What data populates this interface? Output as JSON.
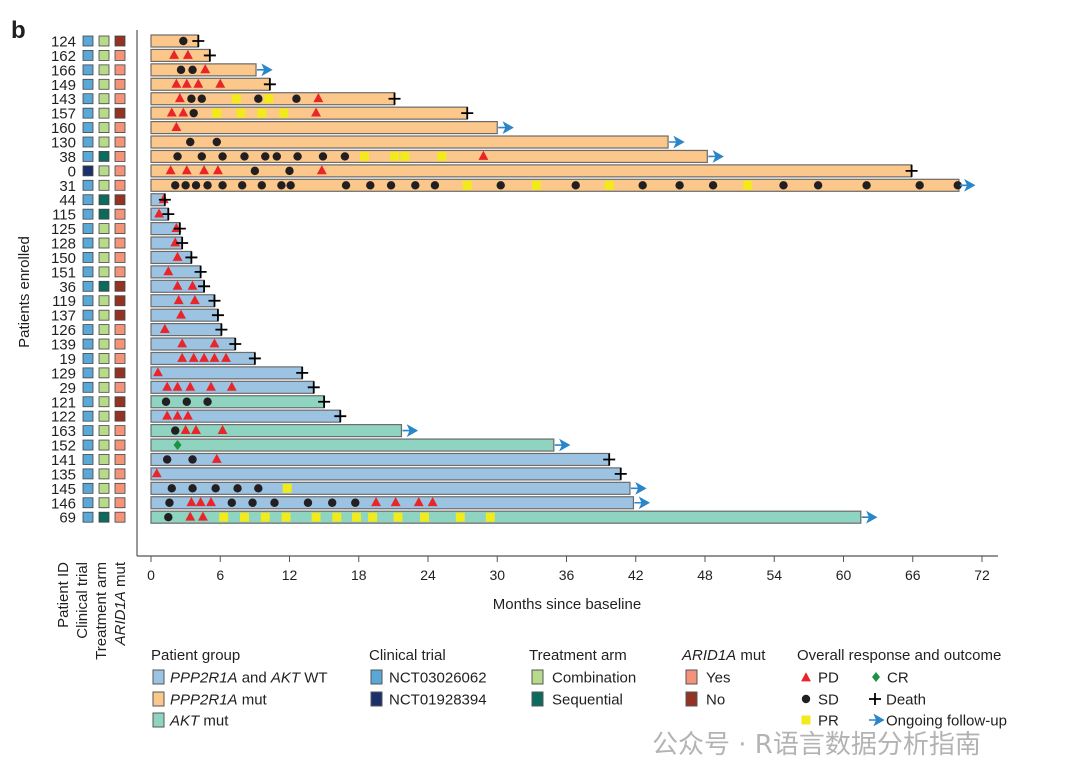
{
  "chart_data": {
    "type": "swimmer",
    "panel_label": "b",
    "xlabel": "Months since baseline",
    "ylabel": "Patients enrolled",
    "xlim": [
      0,
      72
    ],
    "xticks": [
      0,
      6,
      12,
      18,
      24,
      30,
      36,
      42,
      48,
      54,
      60,
      66,
      72
    ],
    "column_labels": [
      "Patient ID",
      "Clinical trial",
      "Treatment arm",
      "ARID1A mut"
    ],
    "colors": {
      "group": {
        "wt": "#9dc3e2",
        "ppp2r1a": "#fbc78b",
        "akt": "#8fd3c1"
      },
      "trial": {
        "NCT03026062": "#5aa7d8",
        "NCT01928394": "#1b2f6b"
      },
      "arm": {
        "combination": "#b7db8b",
        "sequential": "#0d6b5e"
      },
      "arid": {
        "yes": "#f3937a",
        "no": "#933324"
      },
      "PD": "#e8262a",
      "SD": "#231f20",
      "PR": "#f2ea1a",
      "CR": "#1d9145",
      "ongoing": "#2a86c8",
      "death": "#000000"
    },
    "rows": [
      {
        "id": "124",
        "group": "ppp2r1a",
        "trial": "NCT03026062",
        "arm": "combination",
        "arid": "no",
        "end": 4.1,
        "outcome": "death",
        "SD": [
          2.8
        ]
      },
      {
        "id": "162",
        "group": "ppp2r1a",
        "trial": "NCT03026062",
        "arm": "combination",
        "arid": "yes",
        "end": 5.1,
        "outcome": "death",
        "PD": [
          2.0,
          3.2
        ]
      },
      {
        "id": "166",
        "group": "ppp2r1a",
        "trial": "NCT03026062",
        "arm": "combination",
        "arid": "yes",
        "end": 9.1,
        "outcome": "ongoing",
        "SD": [
          2.6,
          3.6
        ],
        "PD": [
          4.7
        ]
      },
      {
        "id": "149",
        "group": "ppp2r1a",
        "trial": "NCT03026062",
        "arm": "combination",
        "arid": "yes",
        "end": 10.3,
        "outcome": "death",
        "PD": [
          2.2,
          3.1,
          4.1,
          6.0
        ]
      },
      {
        "id": "143",
        "group": "ppp2r1a",
        "trial": "NCT03026062",
        "arm": "combination",
        "arid": "yes",
        "end": 21.1,
        "outcome": "death",
        "PD": [
          2.5,
          14.5
        ],
        "SD": [
          3.5,
          4.4,
          9.3,
          12.6
        ],
        "PR": [
          7.4,
          10.2
        ]
      },
      {
        "id": "157",
        "group": "ppp2r1a",
        "trial": "NCT03026062",
        "arm": "combination",
        "arid": "no",
        "end": 27.4,
        "outcome": "death",
        "PD": [
          1.8,
          2.8,
          14.3
        ],
        "SD": [
          3.7
        ],
        "PR": [
          5.7,
          7.8,
          9.6,
          11.5
        ]
      },
      {
        "id": "160",
        "group": "ppp2r1a",
        "trial": "NCT03026062",
        "arm": "combination",
        "arid": "yes",
        "end": 30.0,
        "outcome": "ongoing",
        "PD": [
          2.2
        ]
      },
      {
        "id": "130",
        "group": "ppp2r1a",
        "trial": "NCT03026062",
        "arm": "combination",
        "arid": "yes",
        "end": 44.8,
        "outcome": "ongoing",
        "SD": [
          3.4,
          5.7
        ]
      },
      {
        "id": "38",
        "group": "ppp2r1a",
        "trial": "NCT03026062",
        "arm": "sequential",
        "arid": "yes",
        "end": 48.2,
        "outcome": "ongoing",
        "SD": [
          2.3,
          4.4,
          6.2,
          8.1,
          9.9,
          10.9,
          12.7,
          14.9,
          16.8
        ],
        "PR": [
          18.5,
          21.1,
          22.0,
          25.2
        ],
        "PD": [
          28.8
        ]
      },
      {
        "id": "0",
        "group": "ppp2r1a",
        "trial": "NCT01928394",
        "arm": "combination",
        "arid": "yes",
        "end": 65.9,
        "outcome": "death",
        "PD": [
          1.7,
          3.1,
          4.6,
          5.8,
          14.8
        ],
        "SD": [
          9.0,
          12.0
        ]
      },
      {
        "id": "31",
        "group": "ppp2r1a",
        "trial": "NCT03026062",
        "arm": "combination",
        "arid": "yes",
        "end": 70.0,
        "outcome": "ongoing",
        "SD": [
          2.1,
          3.0,
          3.9,
          4.9,
          6.2,
          7.9,
          9.6,
          11.3,
          12.1,
          16.9,
          19.0,
          20.8,
          22.9,
          24.6,
          30.3,
          36.8,
          42.6,
          45.8,
          48.7,
          54.8,
          57.8,
          62.0,
          66.6,
          69.9
        ],
        "PR": [
          27.4,
          33.4,
          39.7,
          51.7
        ]
      },
      {
        "id": "44",
        "group": "wt",
        "trial": "NCT03026062",
        "arm": "sequential",
        "arid": "no",
        "end": 1.2,
        "outcome": "death",
        "PD": [
          1.1
        ]
      },
      {
        "id": "115",
        "group": "wt",
        "trial": "NCT03026062",
        "arm": "sequential",
        "arid": "yes",
        "end": 1.5,
        "outcome": "death",
        "PD": [
          0.7
        ]
      },
      {
        "id": "125",
        "group": "wt",
        "trial": "NCT03026062",
        "arm": "combination",
        "arid": "yes",
        "end": 2.5,
        "outcome": "death",
        "PD": [
          2.2
        ]
      },
      {
        "id": "128",
        "group": "wt",
        "trial": "NCT03026062",
        "arm": "combination",
        "arid": "yes",
        "end": 2.7,
        "outcome": "death",
        "PD": [
          2.1
        ]
      },
      {
        "id": "150",
        "group": "wt",
        "trial": "NCT03026062",
        "arm": "combination",
        "arid": "yes",
        "end": 3.5,
        "outcome": "death",
        "PD": [
          2.3
        ]
      },
      {
        "id": "151",
        "group": "wt",
        "trial": "NCT03026062",
        "arm": "combination",
        "arid": "yes",
        "end": 4.3,
        "outcome": "death",
        "PD": [
          1.5
        ]
      },
      {
        "id": "36",
        "group": "wt",
        "trial": "NCT03026062",
        "arm": "sequential",
        "arid": "no",
        "end": 4.6,
        "outcome": "death",
        "PD": [
          2.3,
          3.6
        ]
      },
      {
        "id": "119",
        "group": "wt",
        "trial": "NCT03026062",
        "arm": "combination",
        "arid": "no",
        "end": 5.5,
        "outcome": "death",
        "PD": [
          2.4,
          3.8
        ]
      },
      {
        "id": "137",
        "group": "wt",
        "trial": "NCT03026062",
        "arm": "combination",
        "arid": "no",
        "end": 5.8,
        "outcome": "death",
        "PD": [
          2.6
        ]
      },
      {
        "id": "126",
        "group": "wt",
        "trial": "NCT03026062",
        "arm": "combination",
        "arid": "yes",
        "end": 6.1,
        "outcome": "death",
        "PD": [
          1.2
        ]
      },
      {
        "id": "139",
        "group": "wt",
        "trial": "NCT03026062",
        "arm": "combination",
        "arid": "yes",
        "end": 7.3,
        "outcome": "death",
        "PD": [
          2.7,
          5.5
        ]
      },
      {
        "id": "19",
        "group": "wt",
        "trial": "NCT03026062",
        "arm": "combination",
        "arid": "yes",
        "end": 9.0,
        "outcome": "death",
        "PD": [
          2.7,
          3.7,
          4.6,
          5.5,
          6.5
        ]
      },
      {
        "id": "129",
        "group": "wt",
        "trial": "NCT03026062",
        "arm": "combination",
        "arid": "no",
        "end": 13.1,
        "outcome": "death",
        "PD": [
          0.6
        ]
      },
      {
        "id": "29",
        "group": "wt",
        "trial": "NCT03026062",
        "arm": "combination",
        "arid": "yes",
        "end": 14.1,
        "outcome": "death",
        "PD": [
          1.4,
          2.3,
          3.4,
          5.2,
          7.0
        ]
      },
      {
        "id": "121",
        "group": "akt",
        "trial": "NCT03026062",
        "arm": "combination",
        "arid": "no",
        "end": 15.0,
        "outcome": "death",
        "SD": [
          1.3,
          3.1,
          4.9
        ]
      },
      {
        "id": "122",
        "group": "wt",
        "trial": "NCT03026062",
        "arm": "combination",
        "arid": "no",
        "end": 16.4,
        "outcome": "death",
        "PD": [
          1.4,
          2.3,
          3.2
        ]
      },
      {
        "id": "163",
        "group": "akt",
        "trial": "NCT03026062",
        "arm": "combination",
        "arid": "yes",
        "end": 21.7,
        "outcome": "ongoing",
        "SD": [
          2.1
        ],
        "PD": [
          3.0,
          3.9,
          6.2
        ]
      },
      {
        "id": "152",
        "group": "akt",
        "trial": "NCT03026062",
        "arm": "combination",
        "arid": "yes",
        "end": 34.9,
        "outcome": "ongoing",
        "CR": [
          2.3
        ]
      },
      {
        "id": "141",
        "group": "wt",
        "trial": "NCT03026062",
        "arm": "combination",
        "arid": "yes",
        "end": 39.7,
        "outcome": "death",
        "SD": [
          1.4,
          3.6
        ],
        "PD": [
          5.7
        ]
      },
      {
        "id": "135",
        "group": "wt",
        "trial": "NCT03026062",
        "arm": "combination",
        "arid": "yes",
        "end": 40.7,
        "outcome": "death",
        "PD": [
          0.5
        ]
      },
      {
        "id": "145",
        "group": "wt",
        "trial": "NCT03026062",
        "arm": "combination",
        "arid": "yes",
        "end": 41.5,
        "outcome": "ongoing",
        "SD": [
          1.8,
          3.6,
          5.6,
          7.5,
          9.3
        ],
        "PR": [
          11.8
        ]
      },
      {
        "id": "146",
        "group": "wt",
        "trial": "NCT03026062",
        "arm": "combination",
        "arid": "yes",
        "end": 41.8,
        "outcome": "ongoing",
        "SD": [
          1.6,
          7.0,
          8.8,
          10.7,
          13.6,
          15.7,
          17.7
        ],
        "PD": [
          3.5,
          4.3,
          5.2,
          19.5,
          21.2,
          23.2,
          24.4
        ]
      },
      {
        "id": "69",
        "group": "akt",
        "trial": "NCT03026062",
        "arm": "sequential",
        "arid": "yes",
        "end": 61.5,
        "outcome": "ongoing",
        "SD": [
          1.5
        ],
        "PD": [
          3.4,
          4.5
        ],
        "PR": [
          6.3,
          8.1,
          9.9,
          11.7,
          14.3,
          16.1,
          17.8,
          19.2,
          21.4,
          23.7,
          26.8,
          29.4
        ]
      }
    ],
    "legend": {
      "patient_group": {
        "title": "Patient group",
        "items": [
          {
            "key": "wt",
            "parts": [
              {
                "t": "PPP2R1A",
                "i": true
              },
              {
                "t": " and "
              },
              {
                "t": "AKT",
                "i": true
              },
              {
                "t": " WT"
              }
            ]
          },
          {
            "key": "ppp2r1a",
            "parts": [
              {
                "t": "PPP2R1A",
                "i": true
              },
              {
                "t": " mut"
              }
            ]
          },
          {
            "key": "akt",
            "parts": [
              {
                "t": "AKT",
                "i": true
              },
              {
                "t": " mut"
              }
            ]
          }
        ]
      },
      "clinical_trial": {
        "title": "Clinical trial",
        "items": [
          "NCT03026062",
          "NCT01928394"
        ]
      },
      "treatment_arm": {
        "title": "Treatment arm",
        "items": [
          "Combination",
          "Sequential"
        ]
      },
      "arid1a": {
        "title_italic": "ARID1A",
        "title_rest": " mut",
        "items": [
          "Yes",
          "No"
        ]
      },
      "response": {
        "title": "Overall response and outcome",
        "PD": "PD",
        "SD": "SD",
        "PR": "PR",
        "CR": "CR",
        "death": "Death",
        "ongoing": "Ongoing follow-up"
      }
    }
  },
  "watermark": "公众号 · R语言数据分析指南"
}
